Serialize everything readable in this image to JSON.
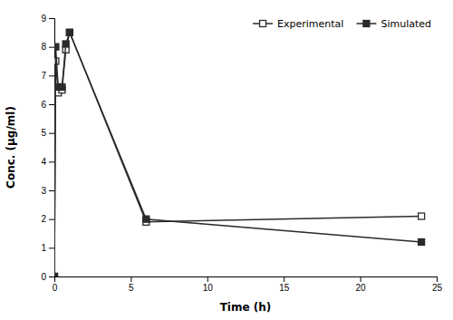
{
  "chart_data": {
    "type": "line",
    "x": [
      0,
      0.083,
      0.25,
      0.5,
      0.75,
      1.0,
      6.0,
      24.0
    ],
    "series": [
      {
        "name": "Experimental",
        "color": "#2b2b2b",
        "marker": "square-open",
        "line_style": "solid",
        "values": [
          0.0,
          7.5,
          6.4,
          6.5,
          7.9,
          8.5,
          1.9,
          2.1
        ]
      },
      {
        "name": "Simulated",
        "color": "#2b2b2b",
        "marker": "square",
        "line_style": "solid",
        "values": [
          0.0,
          8.0,
          6.6,
          6.6,
          8.1,
          8.5,
          2.0,
          1.2
        ]
      }
    ],
    "xlabel": "Time (h)",
    "ylabel": "Conc. (μg/ml)",
    "xlim": [
      0,
      25
    ],
    "ylim": [
      0,
      9
    ],
    "xticks": [
      0,
      5,
      10,
      15,
      20,
      25
    ],
    "yticks": [
      0,
      1,
      2,
      3,
      4,
      5,
      6,
      7,
      8,
      9
    ],
    "grid": false,
    "legend": "upper right"
  }
}
